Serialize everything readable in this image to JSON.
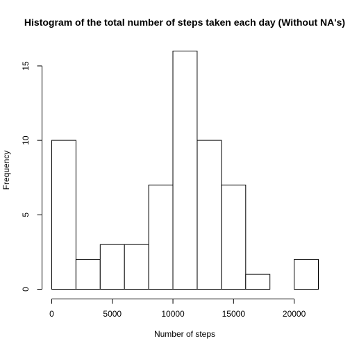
{
  "chart_data": {
    "type": "bar",
    "title": "Histogram of the total number of steps taken each day (Without NA's)",
    "xlabel": "Number of steps",
    "ylabel": "Frequency",
    "bin_edges": [
      0,
      2000,
      4000,
      6000,
      8000,
      10000,
      12000,
      14000,
      16000,
      18000,
      20000,
      22000
    ],
    "values": [
      10,
      2,
      3,
      3,
      7,
      16,
      10,
      7,
      1,
      0,
      2
    ],
    "xlim": [
      0,
      22000
    ],
    "ylim": [
      0,
      16
    ],
    "xticks": [
      0,
      5000,
      10000,
      15000,
      20000
    ],
    "yticks": [
      0,
      5,
      10,
      15
    ],
    "grid": false,
    "legend": "none"
  }
}
